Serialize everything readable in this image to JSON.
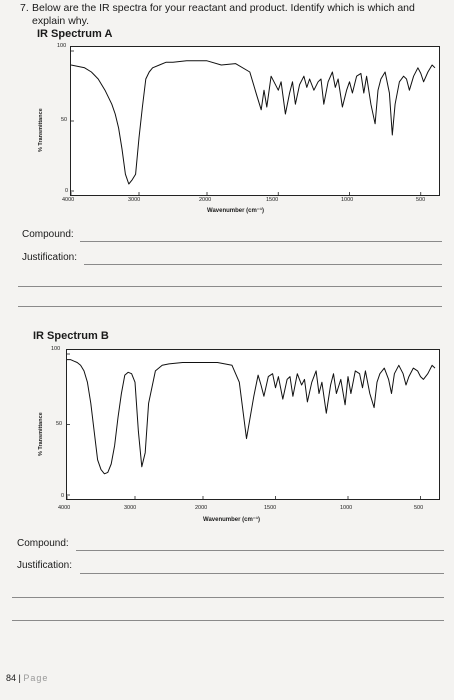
{
  "question": {
    "number": "7.",
    "text": "Below are the IR spectra for your reactant and product. Identify which is which and explain why."
  },
  "spectra": [
    {
      "title": "IR Spectrum A",
      "ylabel": "% Transmittance",
      "xlabel": "Wavenumber (cm⁻¹)",
      "y_ticks": [
        "100",
        "50",
        "0"
      ],
      "x_ticks": [
        "4000",
        "3000",
        "2000",
        "1500",
        "1000",
        "500"
      ]
    },
    {
      "title": "IR Spectrum B",
      "ylabel": "% Transmittance",
      "xlabel": "Wavenumber (cm⁻¹)",
      "y_ticks": [
        "100",
        "50",
        "0"
      ],
      "x_ticks": [
        "4000",
        "3000",
        "2000",
        "1500",
        "1000",
        "500"
      ]
    }
  ],
  "form_a": {
    "compound_label": "Compound:",
    "justification_label": "Justification:"
  },
  "form_b": {
    "compound_label": "Compound:",
    "justification_label": "Justification:"
  },
  "footer": {
    "page_number": "84",
    "separator": "|",
    "page_word": "Page"
  },
  "chart_data": [
    {
      "type": "line",
      "title": "IR Spectrum A",
      "xlabel": "Wavenumber (cm⁻¹)",
      "ylabel": "% Transmittance",
      "xlim": [
        4000,
        400
      ],
      "ylim": [
        0,
        100
      ],
      "x_scale": "split at 2000 (4000-2000 compressed, 2000-400 expanded)",
      "grid": false,
      "series": [
        {
          "x": [
            4000,
            3800,
            3700,
            3600,
            3500,
            3400,
            3350,
            3300,
            3250,
            3200,
            3150,
            3100,
            3050,
            3000,
            2950,
            2900,
            2850,
            2800,
            2700,
            2600,
            2500,
            2300,
            2100,
            2000,
            1900,
            1800,
            1700,
            1650,
            1620,
            1600,
            1580,
            1550,
            1500,
            1480,
            1450,
            1420,
            1400,
            1380,
            1350,
            1320,
            1300,
            1280,
            1250,
            1220,
            1200,
            1180,
            1150,
            1120,
            1100,
            1080,
            1050,
            1020,
            1000,
            980,
            950,
            920,
            900,
            880,
            850,
            820,
            800,
            780,
            750,
            720,
            700,
            680,
            650,
            620,
            600,
            580,
            550,
            520,
            500,
            480,
            450,
            420,
            400
          ],
          "y": [
            90,
            88,
            85,
            80,
            72,
            62,
            55,
            45,
            30,
            12,
            5,
            8,
            12,
            38,
            60,
            80,
            85,
            88,
            90,
            92,
            92,
            93,
            93,
            93,
            90,
            91,
            85,
            68,
            58,
            72,
            60,
            82,
            72,
            78,
            55,
            70,
            78,
            62,
            76,
            82,
            74,
            80,
            72,
            78,
            80,
            62,
            78,
            85,
            74,
            80,
            60,
            72,
            78,
            70,
            82,
            84,
            70,
            82,
            62,
            48,
            72,
            80,
            85,
            70,
            40,
            62,
            78,
            82,
            80,
            72,
            82,
            88,
            84,
            78,
            85,
            90,
            88
          ]
        }
      ]
    },
    {
      "type": "line",
      "title": "IR Spectrum B",
      "xlabel": "Wavenumber (cm⁻¹)",
      "ylabel": "% Transmittance",
      "xlim": [
        4000,
        400
      ],
      "ylim": [
        0,
        100
      ],
      "x_scale": "split at 2000 (4000-2000 compressed, 2000-400 expanded)",
      "grid": false,
      "series": [
        {
          "x": [
            4000,
            3950,
            3900,
            3850,
            3800,
            3750,
            3700,
            3650,
            3600,
            3550,
            3500,
            3450,
            3400,
            3350,
            3300,
            3250,
            3200,
            3150,
            3100,
            3050,
            3000,
            2950,
            2900,
            2850,
            2800,
            2700,
            2600,
            2500,
            2300,
            2100,
            2000,
            1900,
            1800,
            1750,
            1700,
            1650,
            1620,
            1600,
            1580,
            1550,
            1520,
            1500,
            1480,
            1450,
            1420,
            1400,
            1380,
            1350,
            1320,
            1300,
            1280,
            1250,
            1220,
            1200,
            1180,
            1150,
            1120,
            1100,
            1080,
            1050,
            1020,
            1000,
            980,
            950,
            920,
            900,
            880,
            850,
            820,
            800,
            780,
            750,
            720,
            700,
            680,
            650,
            620,
            600,
            580,
            550,
            520,
            500,
            480,
            450,
            420,
            400
          ],
          "y": [
            96,
            96,
            95,
            94,
            92,
            88,
            80,
            65,
            45,
            25,
            18,
            15,
            16,
            22,
            35,
            55,
            72,
            85,
            87,
            86,
            80,
            45,
            20,
            30,
            65,
            88,
            92,
            93,
            94,
            94,
            94,
            94,
            92,
            80,
            40,
            70,
            85,
            78,
            70,
            84,
            86,
            76,
            84,
            68,
            82,
            84,
            70,
            86,
            78,
            82,
            66,
            80,
            88,
            72,
            80,
            58,
            78,
            86,
            72,
            82,
            64,
            84,
            72,
            88,
            86,
            76,
            88,
            72,
            62,
            80,
            86,
            90,
            82,
            72,
            86,
            92,
            86,
            78,
            84,
            90,
            88,
            84,
            82,
            86,
            92,
            90
          ]
        }
      ]
    }
  ]
}
